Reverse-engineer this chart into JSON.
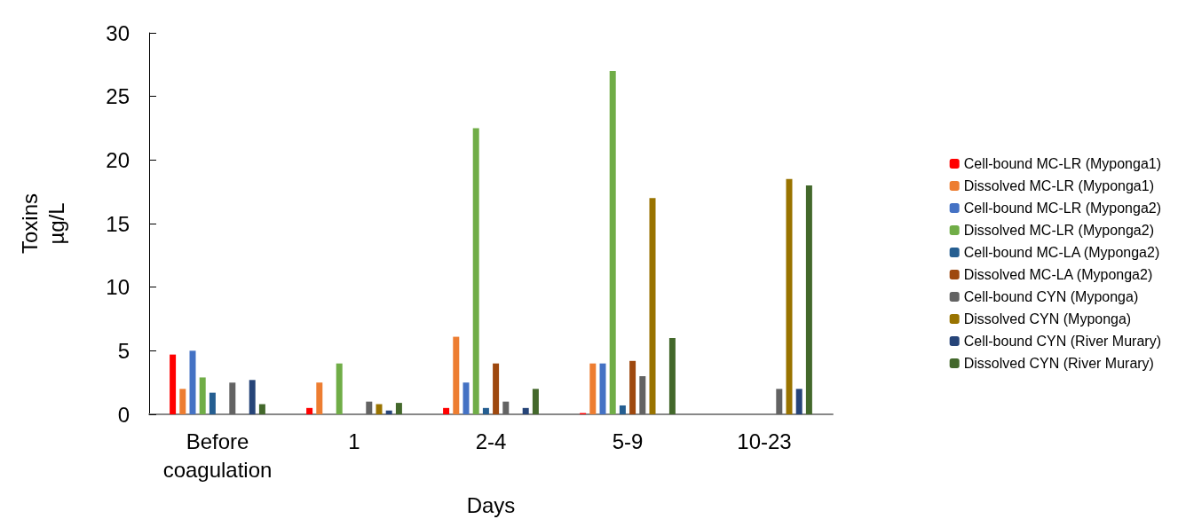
{
  "chart_data": {
    "type": "bar",
    "xlabel": "Days",
    "ylabel": "Toxins\nµg/L",
    "categories": [
      "Before\ncoagulation",
      "1",
      "2-4",
      "5-9",
      "10-23"
    ],
    "ylim": [
      0,
      30
    ],
    "yticks": [
      0,
      5,
      10,
      15,
      20,
      25,
      30
    ],
    "grid": false,
    "legend": "right",
    "series": [
      {
        "name": "Cell-bound MC-LR (Myponga1)",
        "color": "#ff0000",
        "values": [
          4.7,
          0.5,
          0.5,
          0.1,
          0
        ]
      },
      {
        "name": "Dissolved MC-LR (Myponga1)",
        "color": "#ed7d31",
        "values": [
          2.0,
          2.5,
          6.1,
          4.0,
          0
        ]
      },
      {
        "name": "Cell-bound MC-LR (Myponga2)",
        "color": "#4472c4",
        "values": [
          5.0,
          0,
          2.5,
          4.0,
          0
        ]
      },
      {
        "name": "Dissolved MC-LR (Myponga2)",
        "color": "#70ad47",
        "values": [
          2.9,
          4.0,
          22.5,
          27.0,
          0
        ]
      },
      {
        "name": "Cell-bound MC-LA (Myponga2)",
        "color": "#255e91",
        "values": [
          1.7,
          0,
          0.5,
          0.7,
          0
        ]
      },
      {
        "name": "Dissolved MC-LA (Myponga2)",
        "color": "#9e480e",
        "values": [
          0,
          0,
          4.0,
          4.2,
          0
        ]
      },
      {
        "name": "Cell-bound CYN (Myponga)",
        "color": "#636363",
        "values": [
          2.5,
          1.0,
          1.0,
          3.0,
          2.0
        ]
      },
      {
        "name": "Dissolved CYN (Myponga)",
        "color": "#997300",
        "values": [
          0,
          0.8,
          0,
          17.0,
          18.5
        ]
      },
      {
        "name": "Cell-bound CYN (River Murary)",
        "color": "#264478",
        "values": [
          2.7,
          0.3,
          0.5,
          0,
          2.0
        ]
      },
      {
        "name": "Dissolved CYN (River Murary)",
        "color": "#43682b",
        "values": [
          0.8,
          0.9,
          2.0,
          6.0,
          18.0
        ]
      }
    ]
  }
}
